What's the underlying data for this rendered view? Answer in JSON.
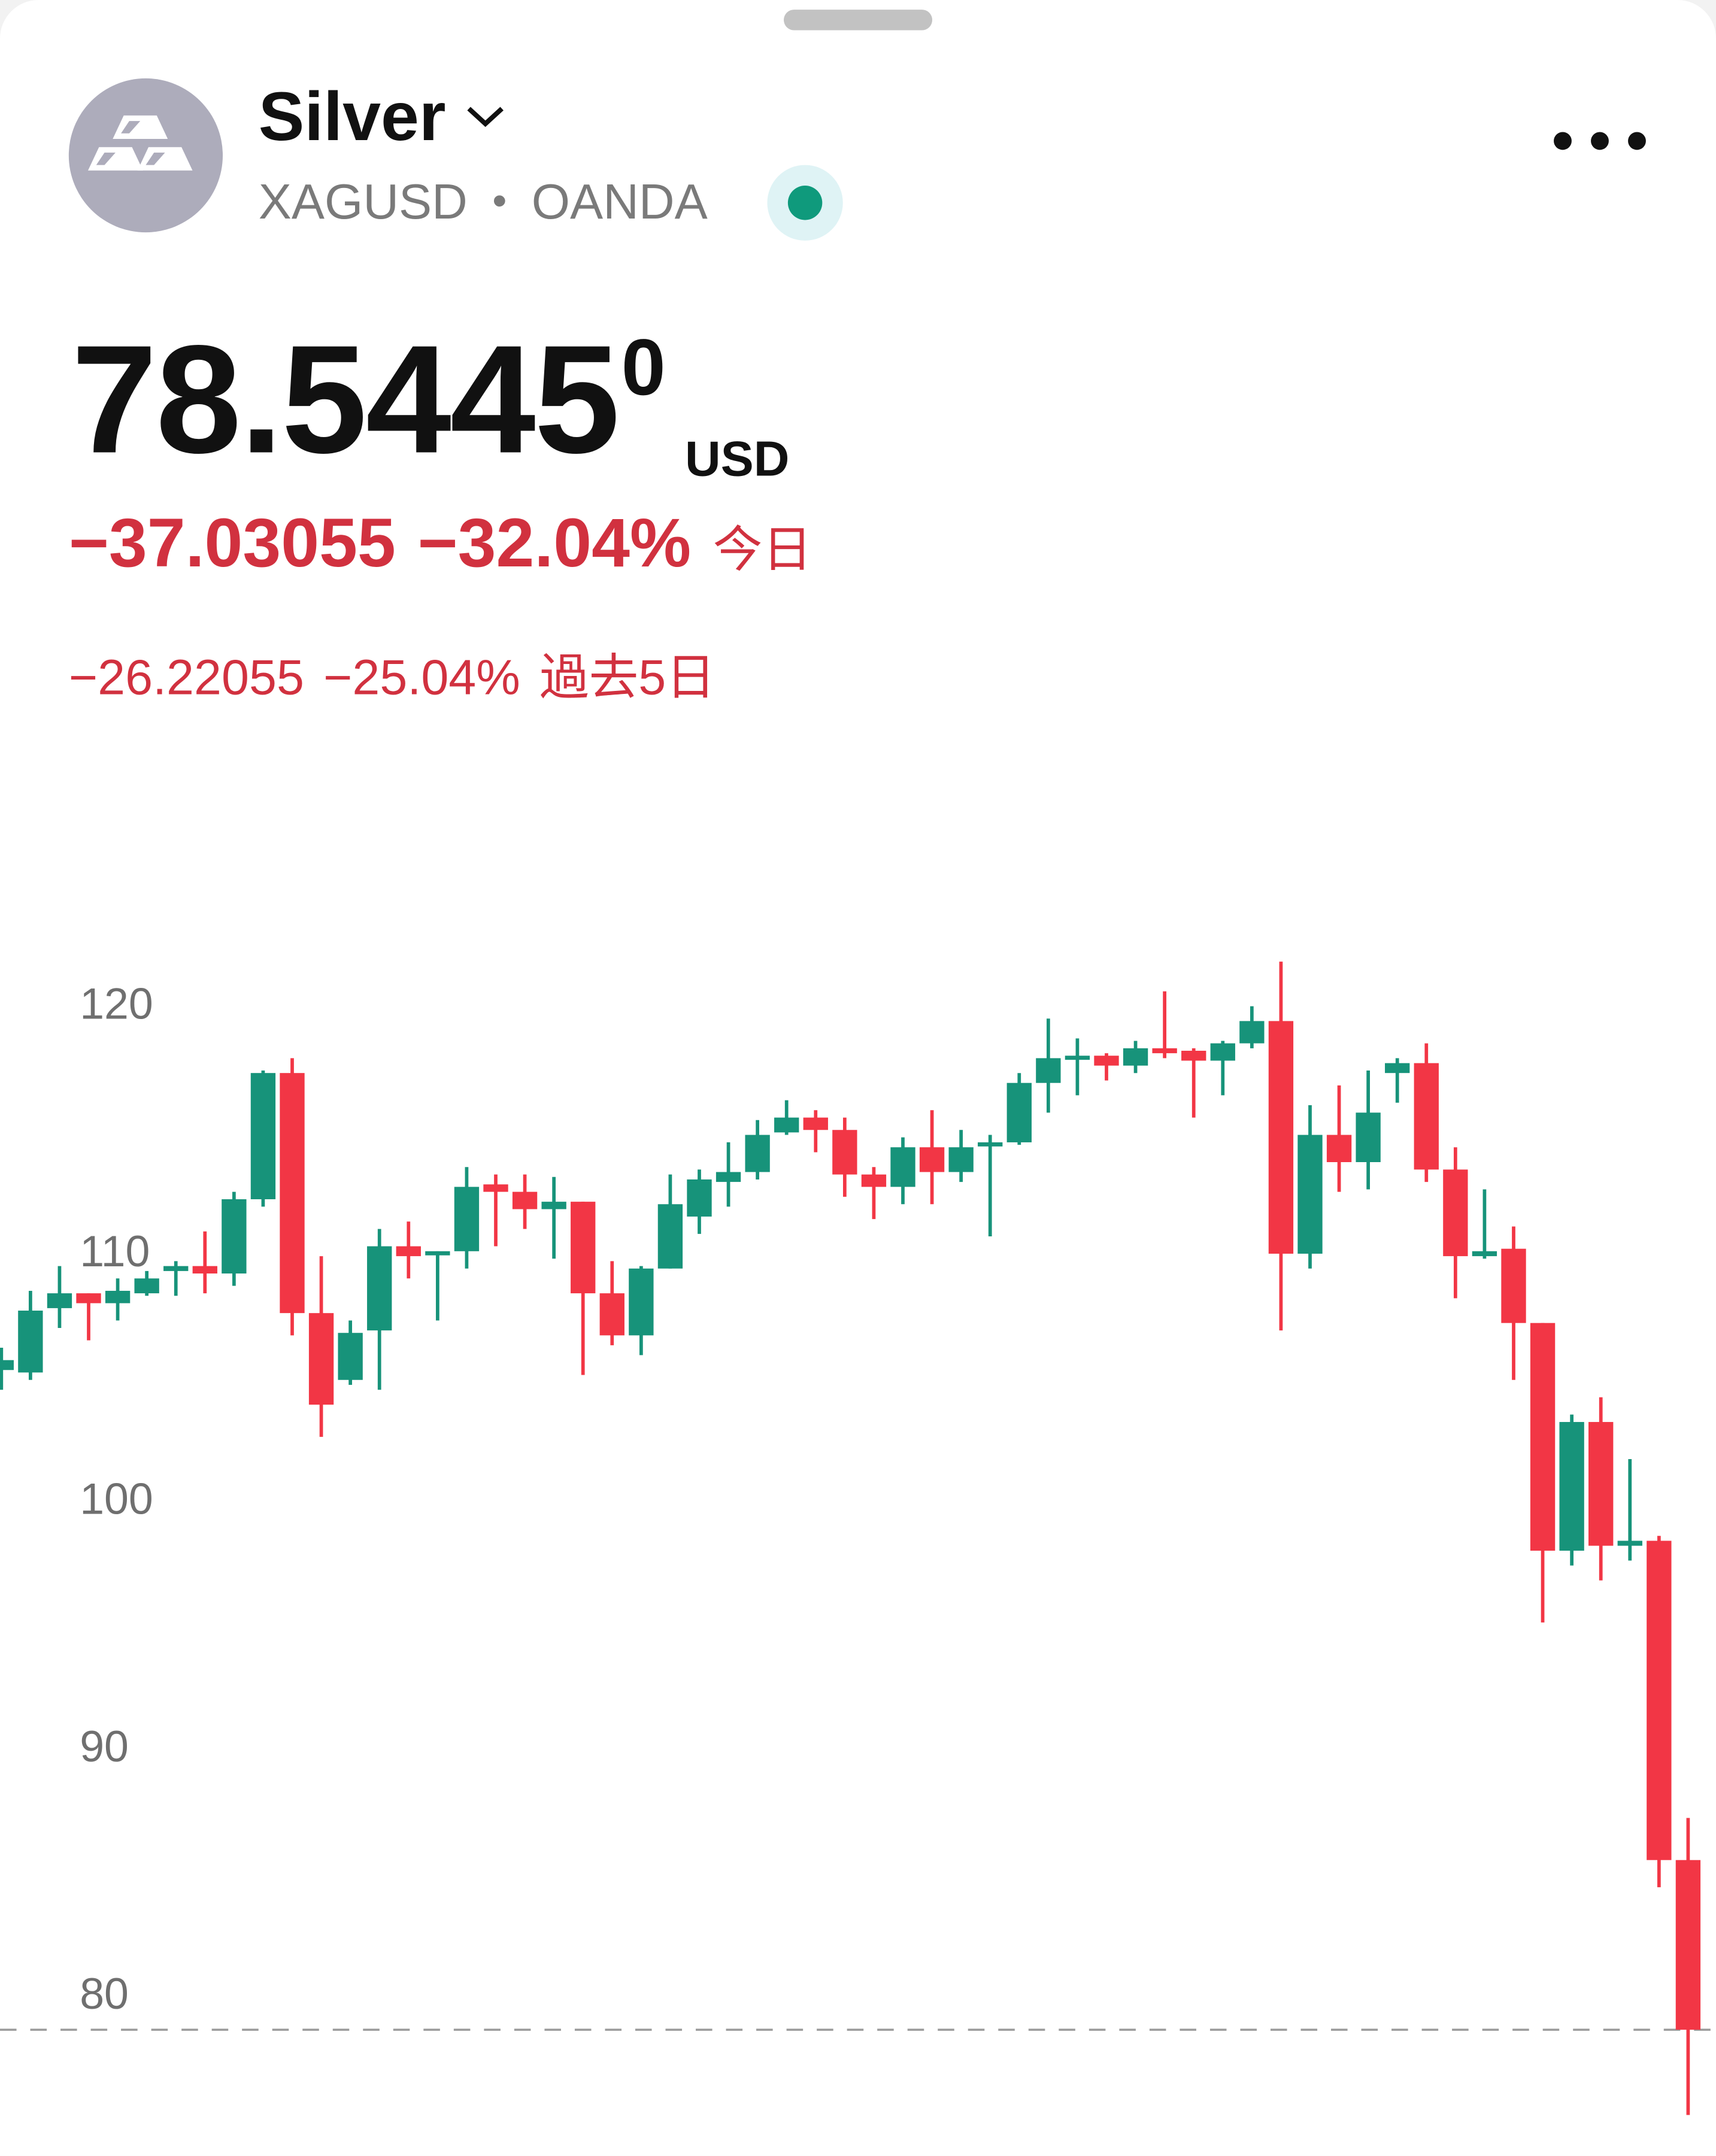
{
  "header": {
    "title": "Silver",
    "symbol": "XAGUSD",
    "separator": "•",
    "exchange": "OANDA",
    "status": "market-open",
    "icon": "silver-bars-icon"
  },
  "quote": {
    "price_main": "78.5445",
    "price_sup": "0",
    "currency": "USD",
    "change_today": "−37.03055",
    "change_today_pct": "−32.04%",
    "today_label": "今日",
    "change_5d": "−26.22055",
    "change_5d_pct": "−25.04%",
    "five_day_label": "過去5日"
  },
  "colors": {
    "up": "#17937a",
    "down": "#f23645",
    "text_down": "#d1313f"
  },
  "chart_data": {
    "type": "candlestick",
    "y_ticks": [
      "120",
      "110",
      "100",
      "90",
      "80"
    ],
    "y_tick_values": [
      120,
      110,
      100,
      90,
      80
    ],
    "ylim": [
      74,
      124
    ],
    "last_price": 78.5445,
    "candles": [
      [
        105.2,
        106.1,
        104.4,
        105.6
      ],
      [
        105.1,
        108.4,
        104.8,
        107.6
      ],
      [
        107.7,
        109.4,
        106.9,
        108.3
      ],
      [
        108.3,
        108.3,
        106.4,
        107.9
      ],
      [
        107.9,
        108.9,
        107.2,
        108.4
      ],
      [
        108.3,
        109.2,
        108.2,
        108.9
      ],
      [
        109.2,
        109.6,
        108.2,
        109.4
      ],
      [
        109.4,
        110.8,
        108.3,
        109.1
      ],
      [
        109.1,
        112.4,
        108.6,
        112.1
      ],
      [
        112.1,
        117.3,
        111.8,
        117.2
      ],
      [
        117.2,
        117.8,
        106.6,
        107.5
      ],
      [
        107.5,
        109.8,
        102.5,
        103.8
      ],
      [
        104.8,
        107.2,
        104.6,
        106.7
      ],
      [
        106.8,
        110.9,
        104.4,
        110.2
      ],
      [
        110.2,
        111.2,
        108.9,
        109.8
      ],
      [
        109.9,
        110.0,
        107.2,
        110.0
      ],
      [
        110.0,
        113.4,
        109.3,
        112.6
      ],
      [
        112.7,
        113.1,
        110.2,
        112.4
      ],
      [
        112.4,
        113.1,
        110.9,
        111.7
      ],
      [
        111.7,
        113.0,
        109.7,
        112.0
      ],
      [
        112.0,
        112.0,
        105.0,
        108.3
      ],
      [
        108.3,
        109.6,
        106.2,
        106.6
      ],
      [
        106.6,
        109.4,
        105.8,
        109.3
      ],
      [
        109.3,
        113.1,
        109.3,
        111.9
      ],
      [
        111.4,
        113.3,
        110.7,
        112.9
      ],
      [
        112.8,
        114.4,
        111.8,
        113.2
      ],
      [
        113.2,
        115.3,
        112.9,
        114.7
      ],
      [
        114.8,
        116.1,
        114.7,
        115.4
      ],
      [
        115.4,
        115.7,
        114.0,
        114.9
      ],
      [
        114.9,
        115.4,
        112.2,
        113.1
      ],
      [
        113.1,
        113.4,
        111.3,
        112.6
      ],
      [
        112.6,
        114.6,
        111.9,
        114.2
      ],
      [
        114.2,
        115.7,
        111.9,
        113.2
      ],
      [
        113.2,
        114.9,
        112.8,
        114.2
      ],
      [
        114.3,
        114.7,
        110.6,
        114.4
      ],
      [
        114.4,
        117.2,
        114.3,
        116.8
      ],
      [
        116.8,
        119.4,
        115.6,
        117.8
      ],
      [
        117.8,
        118.6,
        116.3,
        117.9
      ],
      [
        117.9,
        118.0,
        116.9,
        117.5
      ],
      [
        117.5,
        118.5,
        117.2,
        118.2
      ],
      [
        118.2,
        120.5,
        117.8,
        118.0
      ],
      [
        118.1,
        118.2,
        115.4,
        117.7
      ],
      [
        117.7,
        118.5,
        116.3,
        118.4
      ],
      [
        118.4,
        119.9,
        118.2,
        119.3
      ],
      [
        119.3,
        121.7,
        106.8,
        109.9
      ],
      [
        109.9,
        115.9,
        109.3,
        114.7
      ],
      [
        114.7,
        116.7,
        112.4,
        113.6
      ],
      [
        113.6,
        117.3,
        112.5,
        115.6
      ],
      [
        117.2,
        117.8,
        116.0,
        117.6
      ],
      [
        117.6,
        118.4,
        112.8,
        113.3
      ],
      [
        113.3,
        114.2,
        108.1,
        109.8
      ],
      [
        109.8,
        112.5,
        109.7,
        110.0
      ],
      [
        110.1,
        111.0,
        104.8,
        107.1
      ],
      [
        107.1,
        107.1,
        95.0,
        97.9
      ],
      [
        97.9,
        103.4,
        97.3,
        103.1
      ],
      [
        103.1,
        104.1,
        96.7,
        98.1
      ],
      [
        98.1,
        101.6,
        97.5,
        98.3
      ],
      [
        98.3,
        98.5,
        84.3,
        85.4
      ],
      [
        85.4,
        87.1,
        75.1,
        78.5445
      ]
    ],
    "candle_format": [
      "open",
      "high",
      "low",
      "close"
    ]
  }
}
